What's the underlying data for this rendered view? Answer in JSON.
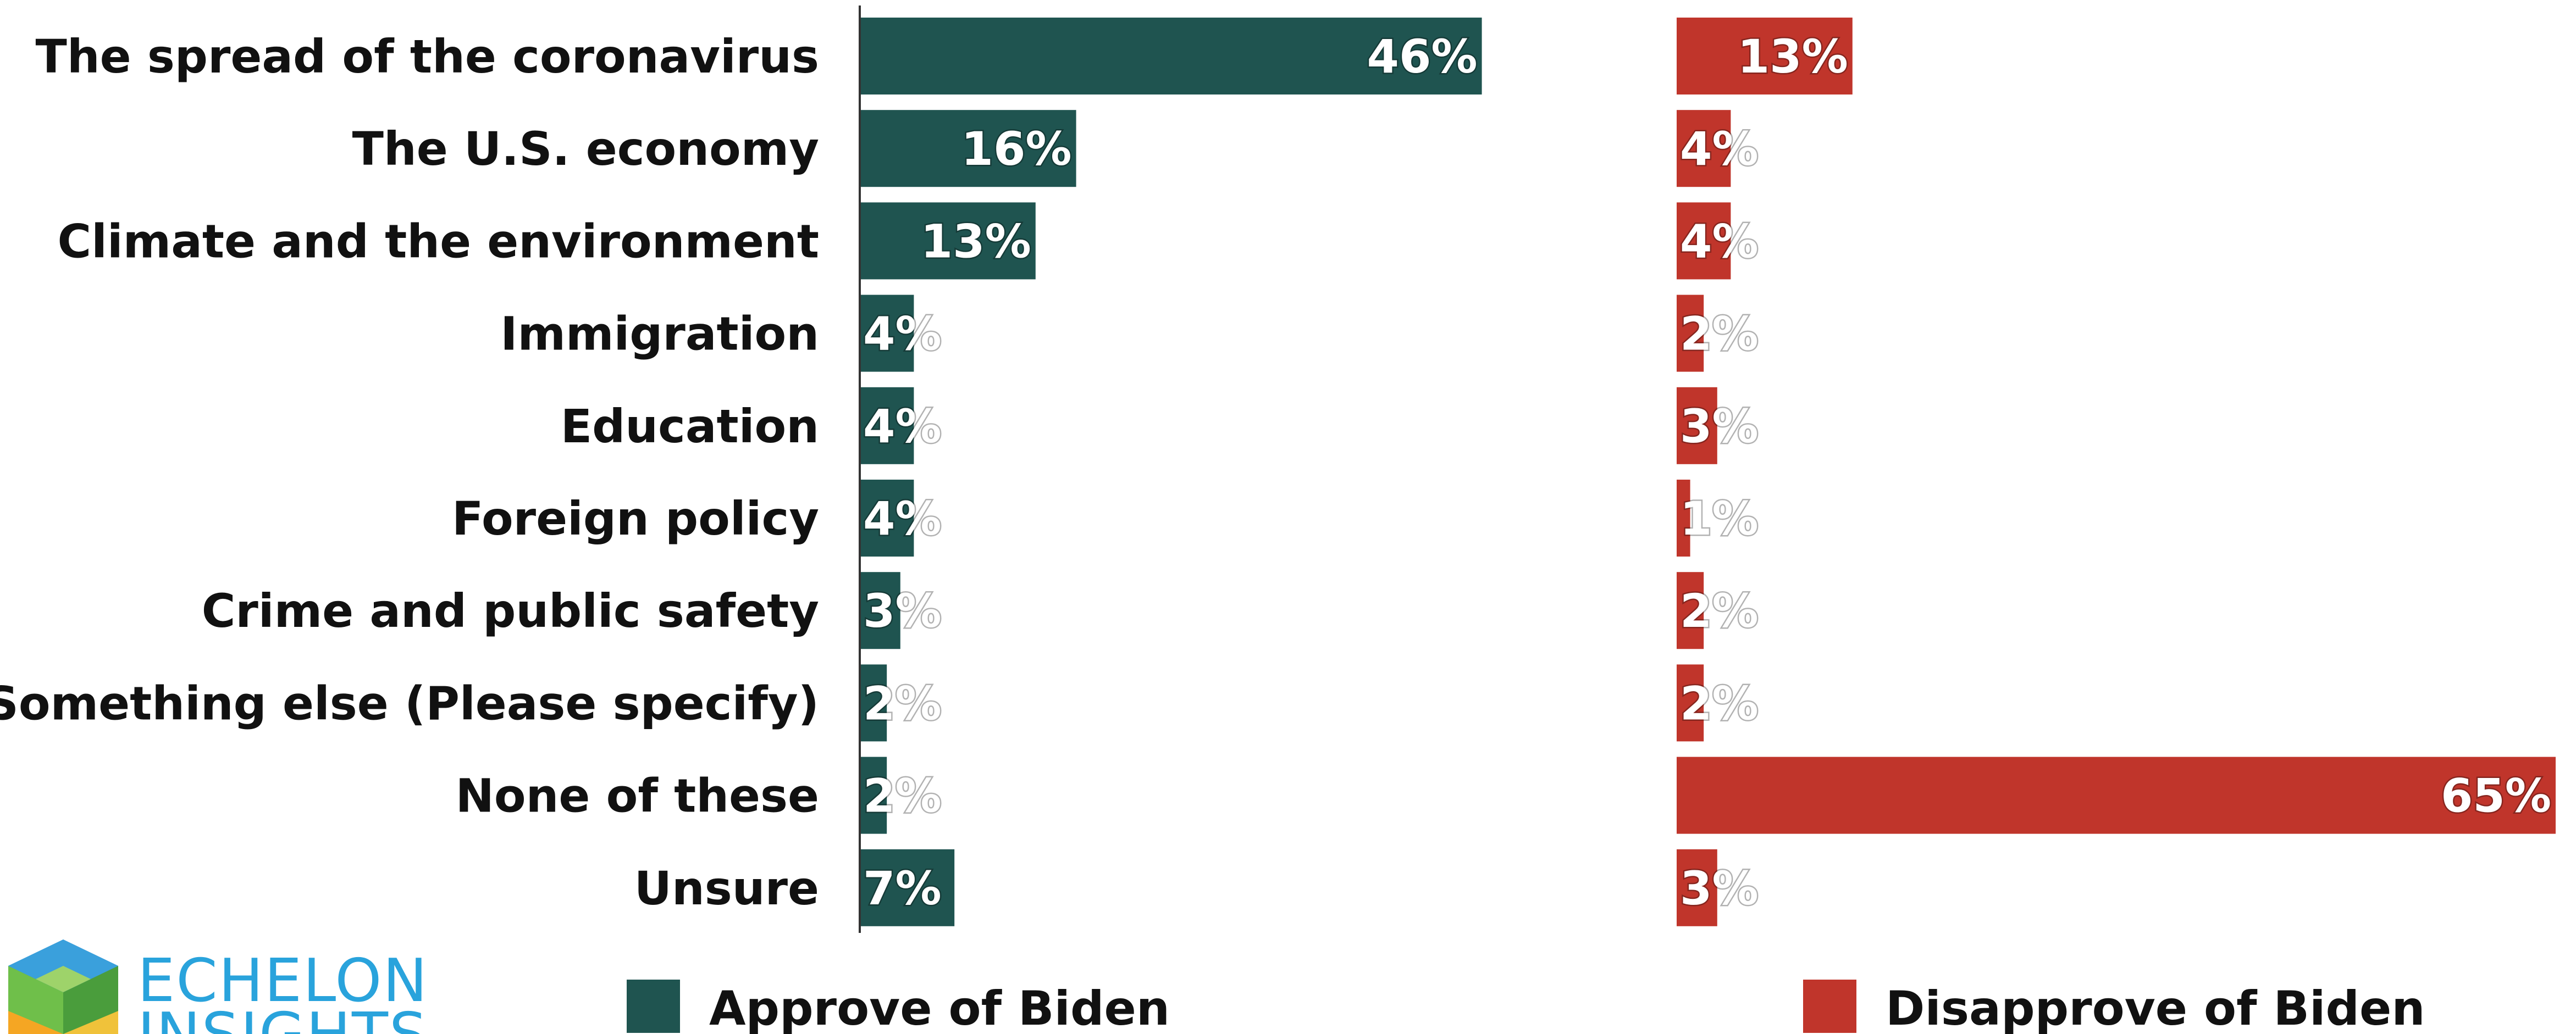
{
  "chart_data": {
    "type": "bar",
    "orientation": "horizontal",
    "categories": [
      "The spread of the coronavirus",
      "The U.S. economy",
      "Climate and the environment",
      "Immigration",
      "Education",
      "Foreign policy",
      "Crime and public safety",
      "Something else (Please specify)",
      "None of these",
      "Unsure"
    ],
    "series": [
      {
        "name": "Approve of Biden",
        "color": "#1f5450",
        "values": [
          46,
          16,
          13,
          4,
          4,
          4,
          3,
          2,
          2,
          7
        ],
        "labels": [
          "46%",
          "16%",
          "13%",
          "4%",
          "4%",
          "4%",
          "3%",
          "2%",
          "2%",
          "7%"
        ]
      },
      {
        "name": "Disapprove of Biden",
        "color": "#c0352b",
        "values": [
          13,
          4,
          4,
          2,
          3,
          1,
          2,
          2,
          65,
          3
        ],
        "labels": [
          "13%",
          "4%",
          "4%",
          "2%",
          "3%",
          "1%",
          "2%",
          "2%",
          "65%",
          "3%"
        ]
      }
    ],
    "xlim": [
      0,
      65
    ],
    "grid": false,
    "legend_position": "bottom"
  },
  "logo": {
    "line1": "ECHELON",
    "line2": "INSIGHTS"
  }
}
